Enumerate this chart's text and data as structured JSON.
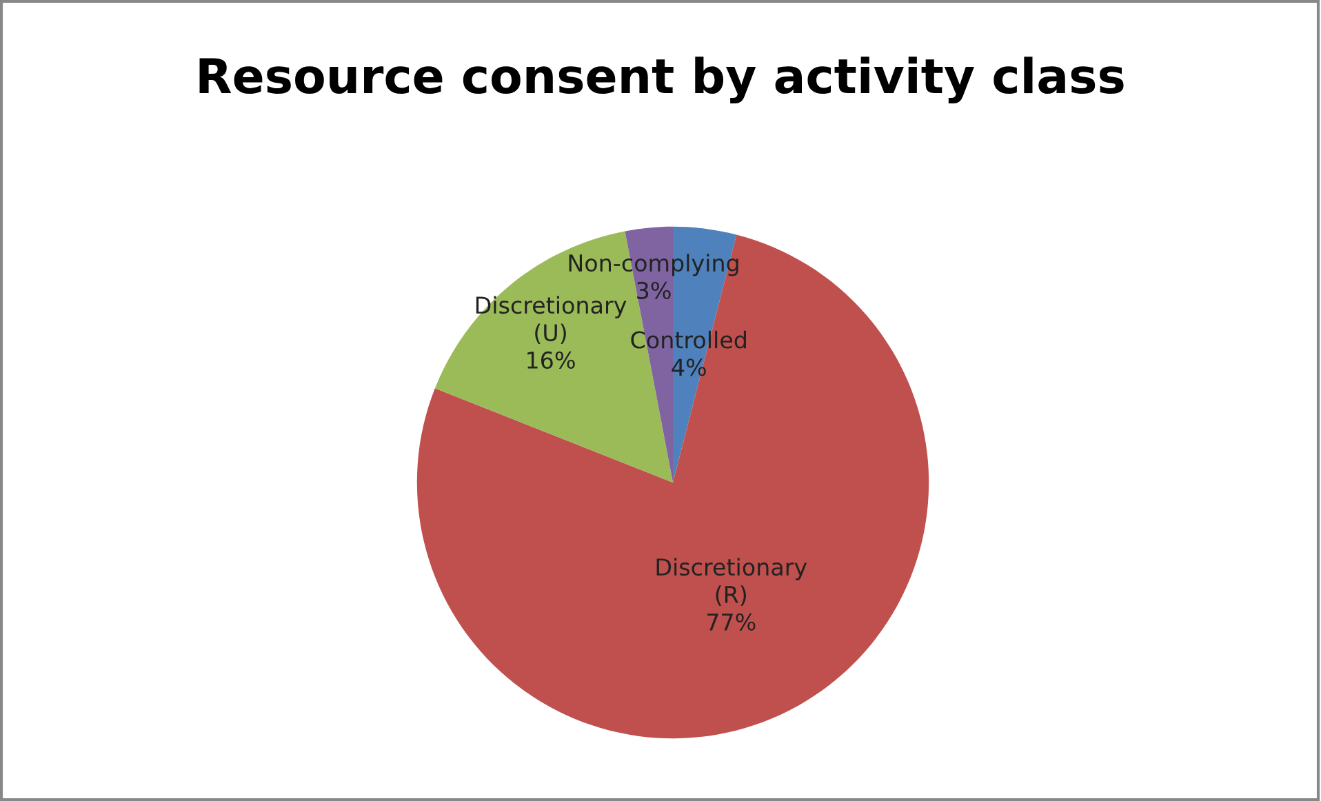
{
  "chart_data": {
    "type": "pie",
    "title": "Resource consent by activity class",
    "categories": [
      "Controlled",
      "Discretionary (R)",
      "Discretionary (U)",
      "Non-complying"
    ],
    "values": [
      4,
      77,
      16,
      3
    ],
    "colors": [
      "#4f81bd",
      "#c0504d",
      "#9bbb59",
      "#8064a2"
    ],
    "value_labels": [
      "4%",
      "77%",
      "16%",
      "3%"
    ],
    "legend": false
  }
}
